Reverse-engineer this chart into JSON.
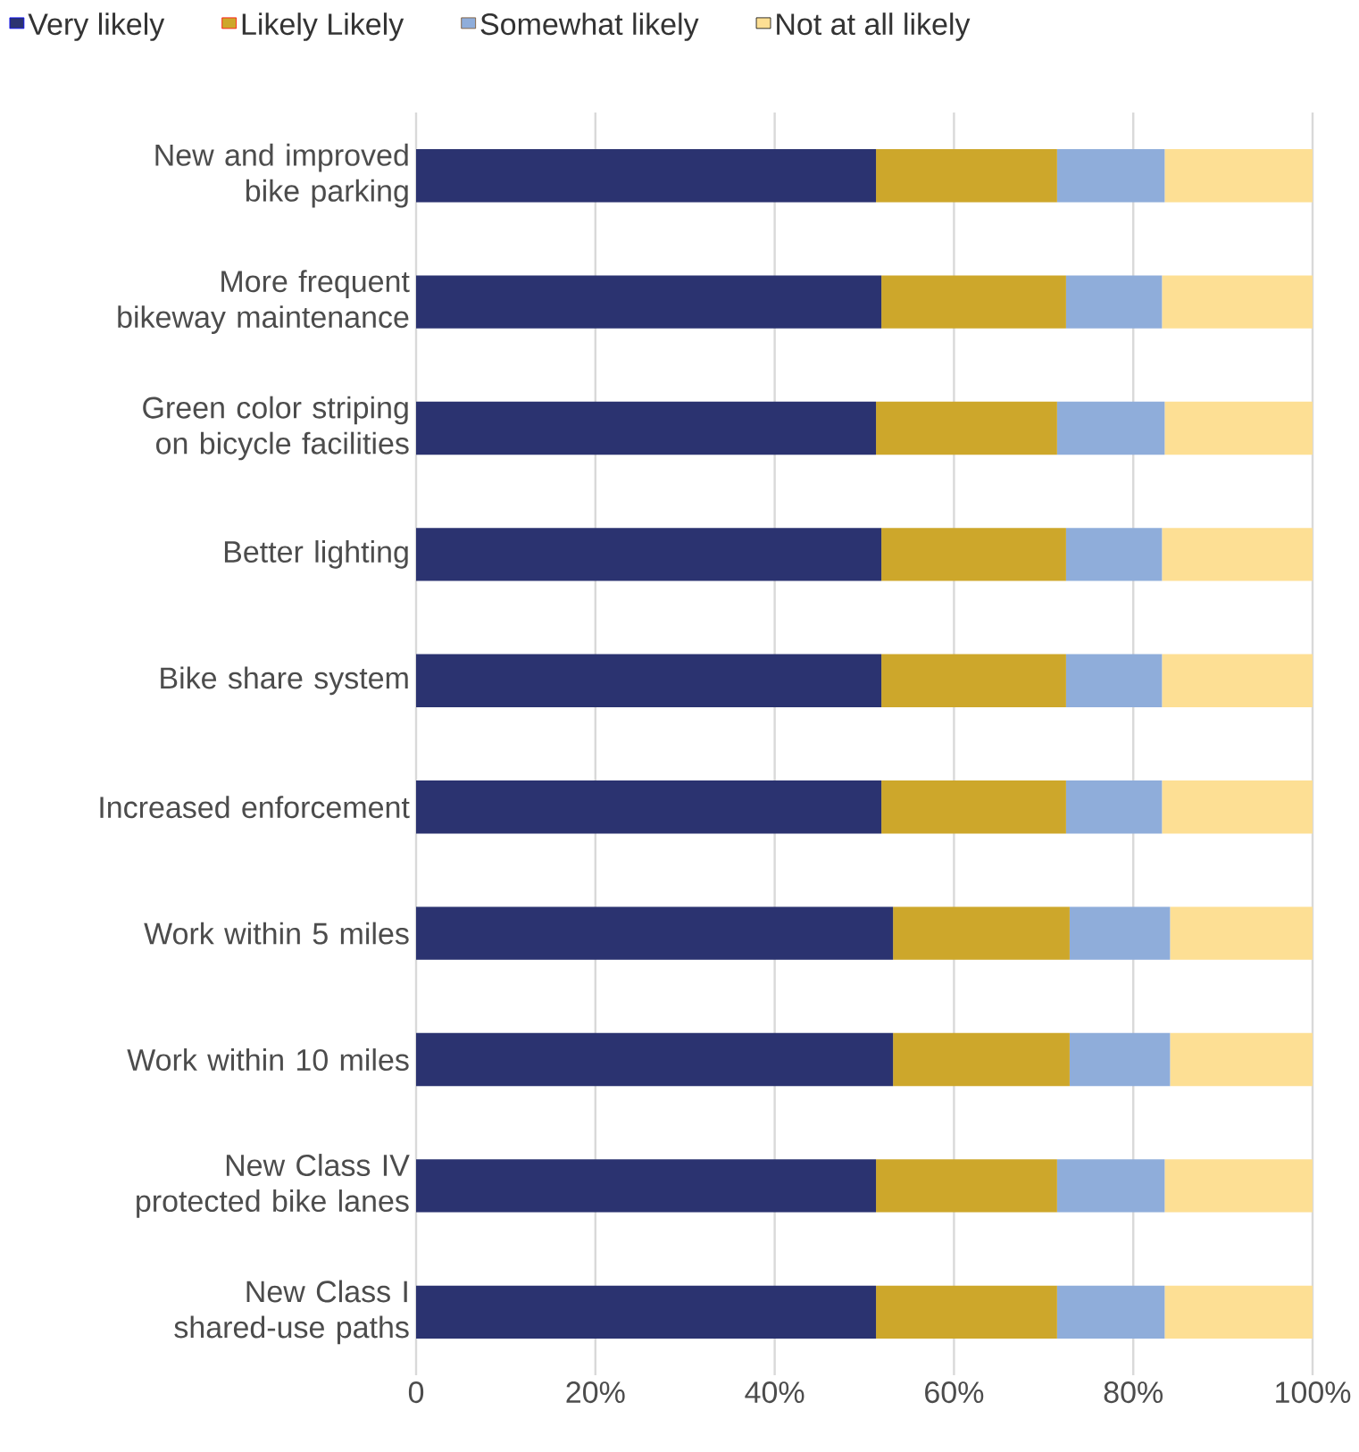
{
  "chart_data": {
    "type": "bar",
    "orientation": "horizontal",
    "stacked": true,
    "categories": [
      "New and improved bike parking",
      "More frequent bikeway maintenance",
      "Green color striping on bicycle facilities",
      "Better lighting",
      "Bike share system",
      "Increased enforcement",
      "Work within 5 miles",
      "Work within 10 miles",
      "New Class IV protected bike lanes",
      "New Class I shared-use paths"
    ],
    "series": [
      {
        "name": "Very likely",
        "color": "#2b3370",
        "values": [
          51.3,
          51.9,
          51.3,
          51.9,
          51.9,
          51.9,
          53.2,
          53.2,
          51.3,
          51.3
        ]
      },
      {
        "name": "Likely Likely",
        "color": "#cda72b",
        "values": [
          20.2,
          20.6,
          20.2,
          20.6,
          20.6,
          20.6,
          19.7,
          19.7,
          20.2,
          20.2
        ]
      },
      {
        "name": "Somewhat likely",
        "color": "#8fadda",
        "values": [
          12.0,
          10.7,
          12.0,
          10.7,
          10.7,
          10.7,
          11.2,
          11.2,
          12.0,
          12.0
        ]
      },
      {
        "name": "Not at all likely",
        "color": "#fddf94",
        "values": [
          16.5,
          16.8,
          16.5,
          16.8,
          16.8,
          16.8,
          15.9,
          15.9,
          16.5,
          16.5
        ]
      }
    ],
    "xlim": [
      0,
      100
    ],
    "xticks": [
      0,
      {
        "value": 20,
        "label": "20%"
      },
      {
        "value": 40,
        "label": "40%"
      },
      {
        "value": 60,
        "label": "60%"
      },
      {
        "value": 80,
        "label": "80%"
      },
      {
        "value": 100,
        "label": "100%"
      }
    ],
    "grid": "x",
    "legend": "top"
  }
}
